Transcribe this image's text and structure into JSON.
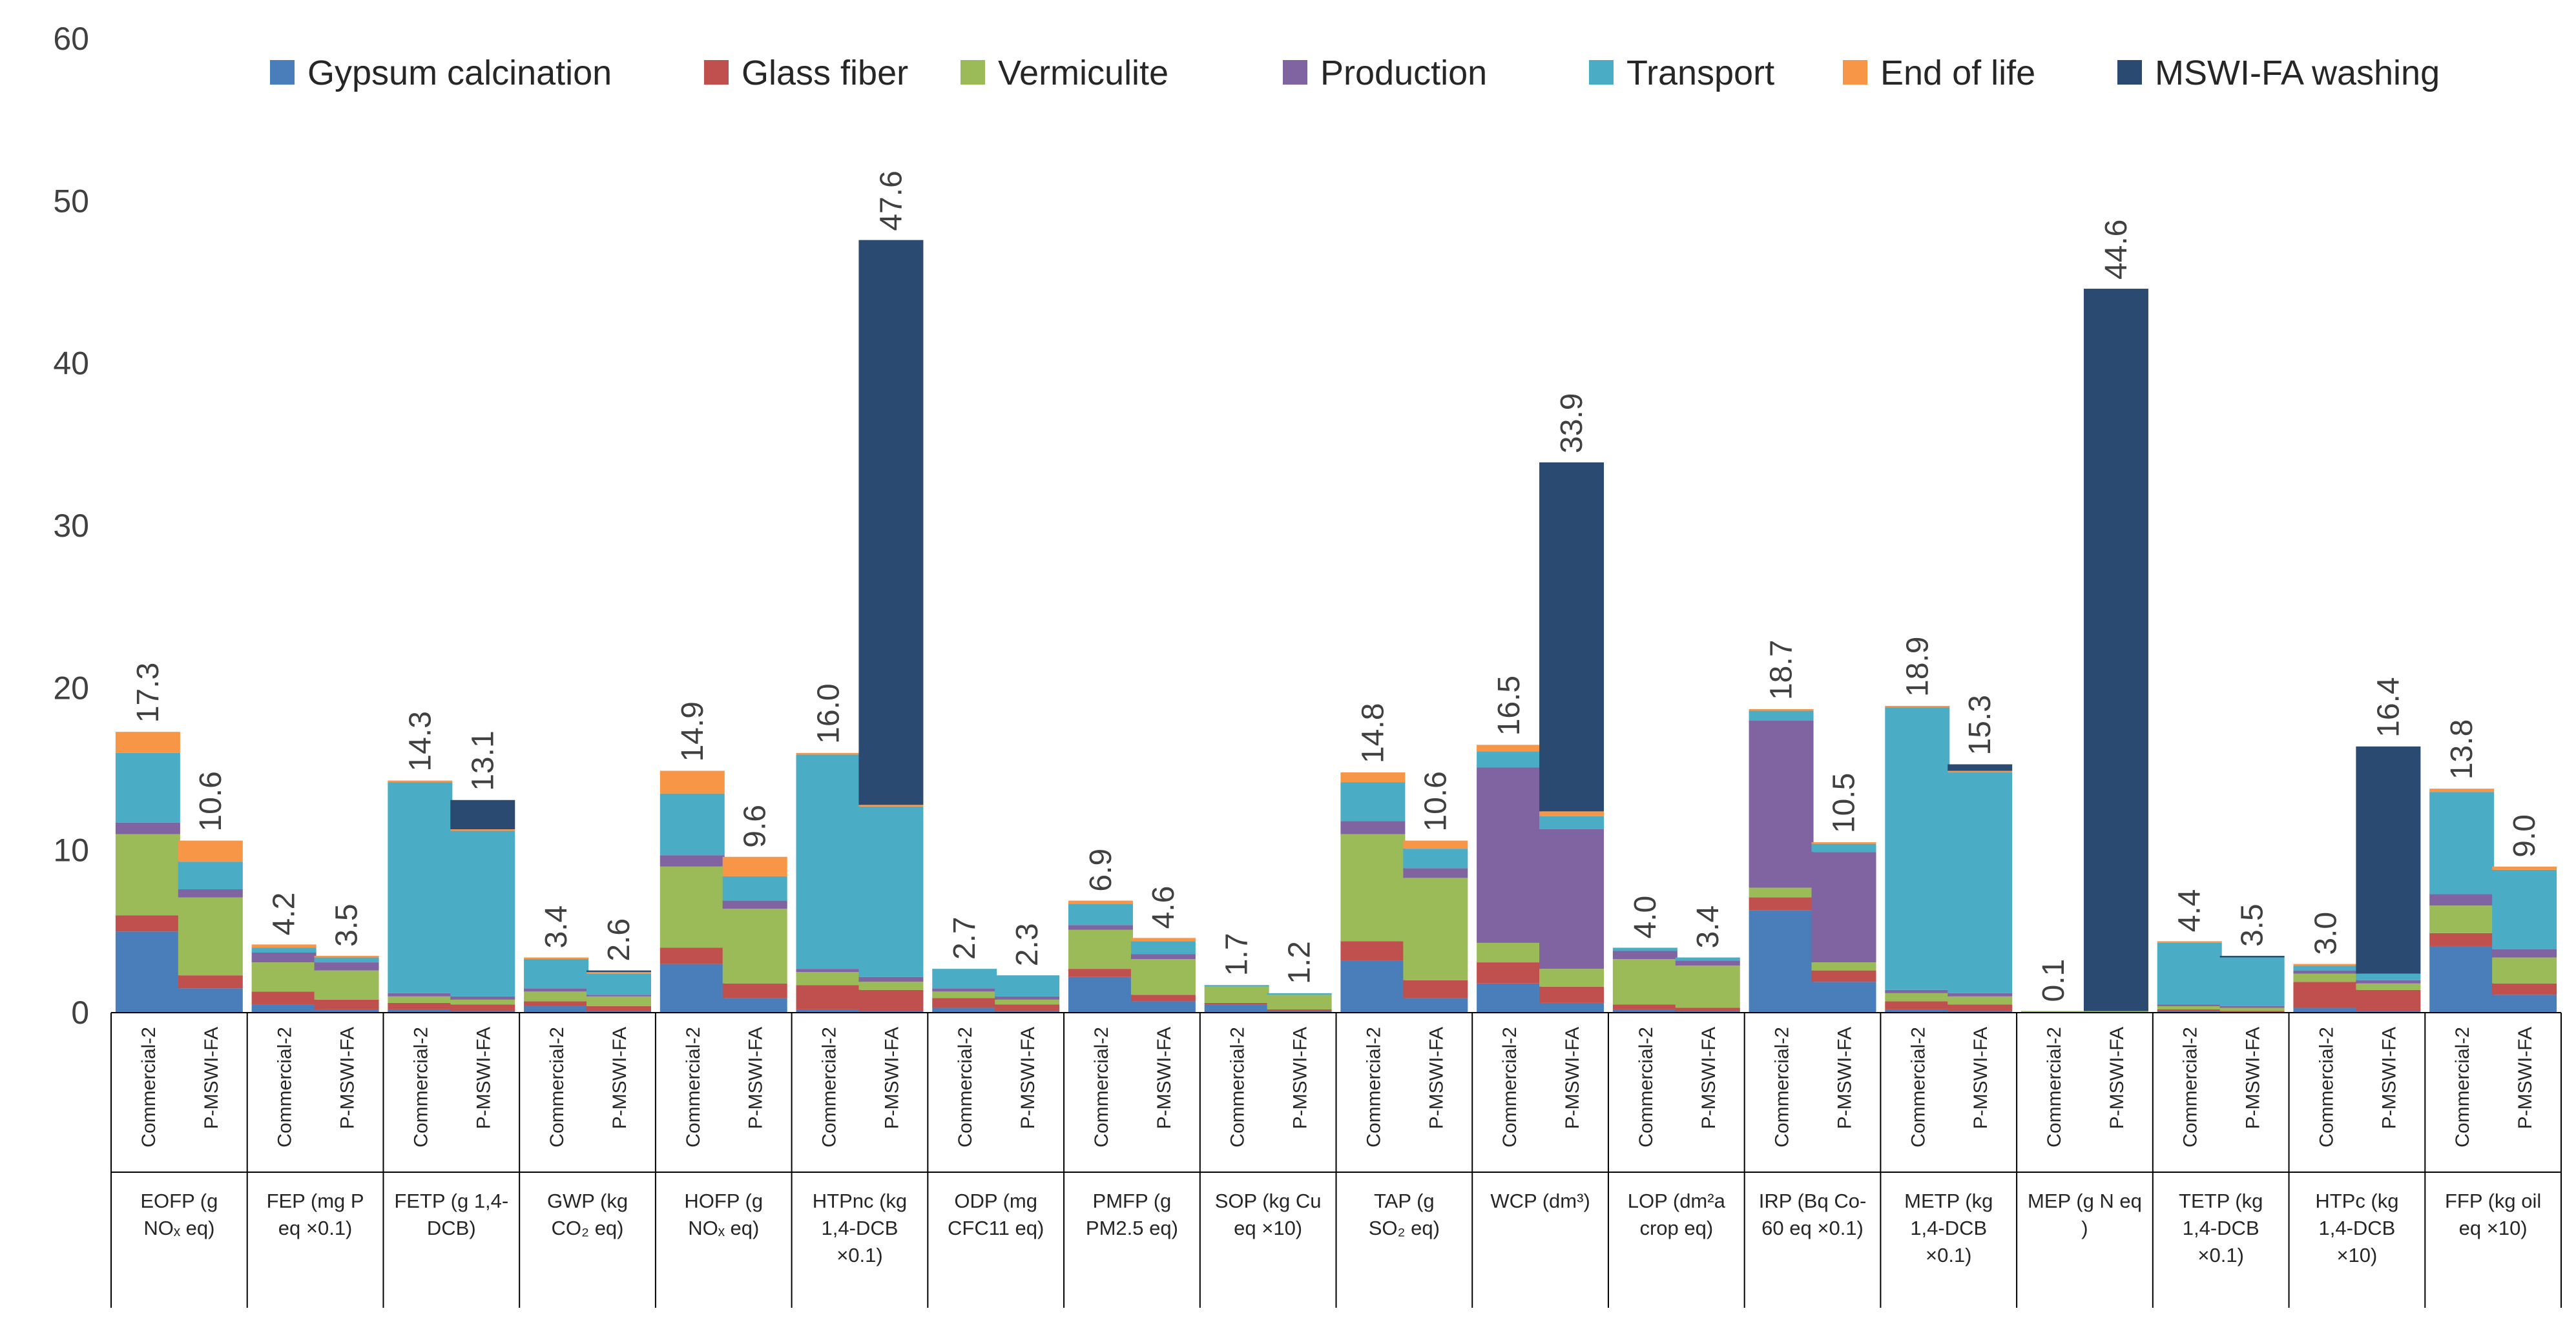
{
  "chart_data": {
    "type": "bar",
    "stacked": true,
    "title": "",
    "xlabel": "",
    "ylabel": "",
    "ylim": [
      0,
      60
    ],
    "yticks": [
      0,
      10,
      20,
      30,
      40,
      50,
      60
    ],
    "legend_position": "top",
    "legend": [
      {
        "name": "Gypsum calcination",
        "color": "#4a7ebb"
      },
      {
        "name": "Glass fiber",
        "color": "#c0504d"
      },
      {
        "name": "Vermiculite",
        "color": "#9bbb59"
      },
      {
        "name": "Production",
        "color": "#8064a2"
      },
      {
        "name": "Transport",
        "color": "#4bacc6"
      },
      {
        "name": "End of life",
        "color": "#f79646"
      },
      {
        "name": "MSWI-FA washing",
        "color": "#2a4a72"
      }
    ],
    "groups": [
      {
        "label_lines": [
          "EOFP (g",
          "NOₓ eq)"
        ],
        "bars": [
          {
            "label": "Commercial-2",
            "total": "17.3",
            "values": [
              5.0,
              1.0,
              5.0,
              0.7,
              4.3,
              1.3,
              0.0
            ]
          },
          {
            "label": "P-MSWI-FA",
            "total": "10.6",
            "values": [
              1.5,
              0.8,
              4.8,
              0.5,
              1.7,
              1.3,
              0.0
            ]
          }
        ]
      },
      {
        "label_lines": [
          "FEP (mg P",
          "eq ×0.1)"
        ],
        "bars": [
          {
            "label": "Commercial-2",
            "total": "4.2",
            "values": [
              0.5,
              0.8,
              1.8,
              0.6,
              0.3,
              0.2,
              0.0
            ]
          },
          {
            "label": "P-MSWI-FA",
            "total": "3.5",
            "values": [
              0.2,
              0.6,
              1.8,
              0.5,
              0.3,
              0.1,
              0.0
            ]
          }
        ]
      },
      {
        "label_lines": [
          "FETP (g 1,4-",
          "DCB)"
        ],
        "bars": [
          {
            "label": "Commercial-2",
            "total": "14.3",
            "values": [
              0.2,
              0.4,
              0.4,
              0.2,
              13.0,
              0.1,
              0.0
            ]
          },
          {
            "label": "P-MSWI-FA",
            "total": "13.1",
            "values": [
              0.1,
              0.4,
              0.3,
              0.2,
              10.2,
              0.1,
              1.8
            ]
          }
        ]
      },
      {
        "label_lines": [
          "GWP (kg",
          "CO₂ eq)"
        ],
        "bars": [
          {
            "label": "Commercial-2",
            "total": "3.4",
            "values": [
              0.4,
              0.3,
              0.6,
              0.2,
              1.8,
              0.1,
              0.0
            ]
          },
          {
            "label": "P-MSWI-FA",
            "total": "2.6",
            "values": [
              0.1,
              0.3,
              0.6,
              0.1,
              1.3,
              0.1,
              0.1
            ]
          }
        ]
      },
      {
        "label_lines": [
          "HOFP (g",
          "NOₓ eq)"
        ],
        "bars": [
          {
            "label": "Commercial-2",
            "total": "14.9",
            "values": [
              3.0,
              1.0,
              5.0,
              0.7,
              3.8,
              1.4,
              0.0
            ]
          },
          {
            "label": "P-MSWI-FA",
            "total": "9.6",
            "values": [
              0.9,
              0.9,
              4.6,
              0.5,
              1.5,
              1.2,
              0.0
            ]
          }
        ]
      },
      {
        "label_lines": [
          "HTPnc (kg",
          "1,4-DCB",
          "×0.1)"
        ],
        "bars": [
          {
            "label": "Commercial-2",
            "total": "16.0",
            "values": [
              0.2,
              1.5,
              0.8,
              0.2,
              13.2,
              0.1,
              0.0
            ]
          },
          {
            "label": "P-MSWI-FA",
            "total": "47.6",
            "values": [
              0.1,
              1.3,
              0.5,
              0.3,
              10.5,
              0.1,
              34.8
            ]
          }
        ]
      },
      {
        "label_lines": [
          "ODP (mg",
          "CFC11 eq)"
        ],
        "bars": [
          {
            "label": "Commercial-2",
            "total": "2.7",
            "values": [
              0.3,
              0.6,
              0.4,
              0.2,
              1.2,
              0.0,
              0.0
            ]
          },
          {
            "label": "P-MSWI-FA",
            "total": "2.3",
            "values": [
              0.1,
              0.4,
              0.3,
              0.2,
              1.3,
              0.0,
              0.0
            ]
          }
        ]
      },
      {
        "label_lines": [
          "PMFP (g",
          "PM2.5 eq)"
        ],
        "bars": [
          {
            "label": "Commercial-2",
            "total": "6.9",
            "values": [
              2.2,
              0.5,
              2.4,
              0.3,
              1.3,
              0.2,
              0.0
            ]
          },
          {
            "label": "P-MSWI-FA",
            "total": "4.6",
            "values": [
              0.7,
              0.4,
              2.2,
              0.3,
              0.8,
              0.2,
              0.0
            ]
          }
        ]
      },
      {
        "label_lines": [
          "SOP (kg Cu",
          "eq ×10)"
        ],
        "bars": [
          {
            "label": "Commercial-2",
            "total": "1.7",
            "values": [
              0.5,
              0.1,
              1.0,
              0.0,
              0.1,
              0.0,
              0.0
            ]
          },
          {
            "label": "P-MSWI-FA",
            "total": "1.2",
            "values": [
              0.1,
              0.1,
              0.9,
              0.0,
              0.1,
              0.0,
              0.0
            ]
          }
        ]
      },
      {
        "label_lines": [
          "TAP (g",
          "SO₂ eq)"
        ],
        "bars": [
          {
            "label": "Commercial-2",
            "total": "14.8",
            "values": [
              3.2,
              1.2,
              6.6,
              0.8,
              2.4,
              0.6,
              0.0
            ]
          },
          {
            "label": "P-MSWI-FA",
            "total": "10.6",
            "values": [
              0.9,
              1.1,
              6.3,
              0.6,
              1.2,
              0.5,
              0.0
            ]
          }
        ]
      },
      {
        "label_lines": [
          "WCP (dm³)"
        ],
        "bars": [
          {
            "label": "Commercial-2",
            "total": "16.5",
            "values": [
              1.8,
              1.3,
              1.2,
              10.8,
              1.0,
              0.4,
              0.0
            ]
          },
          {
            "label": "P-MSWI-FA",
            "total": "33.9",
            "values": [
              0.6,
              1.0,
              1.1,
              8.6,
              0.8,
              0.3,
              21.5
            ]
          }
        ]
      },
      {
        "label_lines": [
          "LOP (dm²a",
          "crop eq)"
        ],
        "bars": [
          {
            "label": "Commercial-2",
            "total": "4.0",
            "values": [
              0.2,
              0.3,
              2.8,
              0.5,
              0.2,
              0.0,
              0.0
            ]
          },
          {
            "label": "P-MSWI-FA",
            "total": "3.4",
            "values": [
              0.1,
              0.2,
              2.6,
              0.3,
              0.2,
              0.0,
              0.0
            ]
          }
        ]
      },
      {
        "label_lines": [
          "IRP (Bq Co-",
          "60 eq ×0.1)"
        ],
        "bars": [
          {
            "label": "Commercial-2",
            "total": "18.7",
            "values": [
              6.3,
              0.8,
              0.6,
              10.3,
              0.6,
              0.1,
              0.0
            ]
          },
          {
            "label": "P-MSWI-FA",
            "total": "10.5",
            "values": [
              1.9,
              0.7,
              0.5,
              6.8,
              0.5,
              0.1,
              0.0
            ]
          }
        ]
      },
      {
        "label_lines": [
          "METP (kg",
          "1,4-DCB",
          "×0.1)"
        ],
        "bars": [
          {
            "label": "Commercial-2",
            "total": "18.9",
            "values": [
              0.2,
              0.5,
              0.5,
              0.2,
              17.4,
              0.1,
              0.0
            ]
          },
          {
            "label": "P-MSWI-FA",
            "total": "15.3",
            "values": [
              0.1,
              0.4,
              0.5,
              0.2,
              13.6,
              0.1,
              0.4
            ]
          }
        ]
      },
      {
        "label_lines": [
          "MEP (g N eq",
          ")"
        ],
        "bars": [
          {
            "label": "Commercial-2",
            "total": "0.1",
            "values": [
              0.0,
              0.0,
              0.1,
              0.0,
              0.0,
              0.0,
              0.0
            ]
          },
          {
            "label": "P-MSWI-FA",
            "total": "44.6",
            "values": [
              0.0,
              0.0,
              0.1,
              0.0,
              0.0,
              0.0,
              44.5
            ]
          }
        ]
      },
      {
        "label_lines": [
          "TETP (kg",
          "1,4-DCB",
          "×0.1)"
        ],
        "bars": [
          {
            "label": "Commercial-2",
            "total": "4.4",
            "values": [
              0.1,
              0.1,
              0.2,
              0.1,
              3.8,
              0.1,
              0.0
            ]
          },
          {
            "label": "P-MSWI-FA",
            "total": "3.5",
            "values": [
              0.0,
              0.1,
              0.2,
              0.1,
              3.0,
              0.0,
              0.1
            ]
          }
        ]
      },
      {
        "label_lines": [
          "HTPc (kg",
          "1,4-DCB",
          "×10)"
        ],
        "bars": [
          {
            "label": "Commercial-2",
            "total": "3.0",
            "values": [
              0.3,
              1.6,
              0.5,
              0.2,
              0.3,
              0.1,
              0.0
            ]
          },
          {
            "label": "P-MSWI-FA",
            "total": "16.4",
            "values": [
              0.1,
              1.3,
              0.4,
              0.2,
              0.4,
              0.0,
              14.0
            ]
          }
        ]
      },
      {
        "label_lines": [
          "FFP (kg oil",
          "eq ×10)"
        ],
        "bars": [
          {
            "label": "Commercial-2",
            "total": "13.8",
            "values": [
              4.1,
              0.8,
              1.7,
              0.7,
              6.3,
              0.2,
              0.0
            ]
          },
          {
            "label": "P-MSWI-FA",
            "total": "9.0",
            "values": [
              1.1,
              0.7,
              1.6,
              0.5,
              4.9,
              0.2,
              0.0
            ]
          }
        ]
      }
    ]
  }
}
